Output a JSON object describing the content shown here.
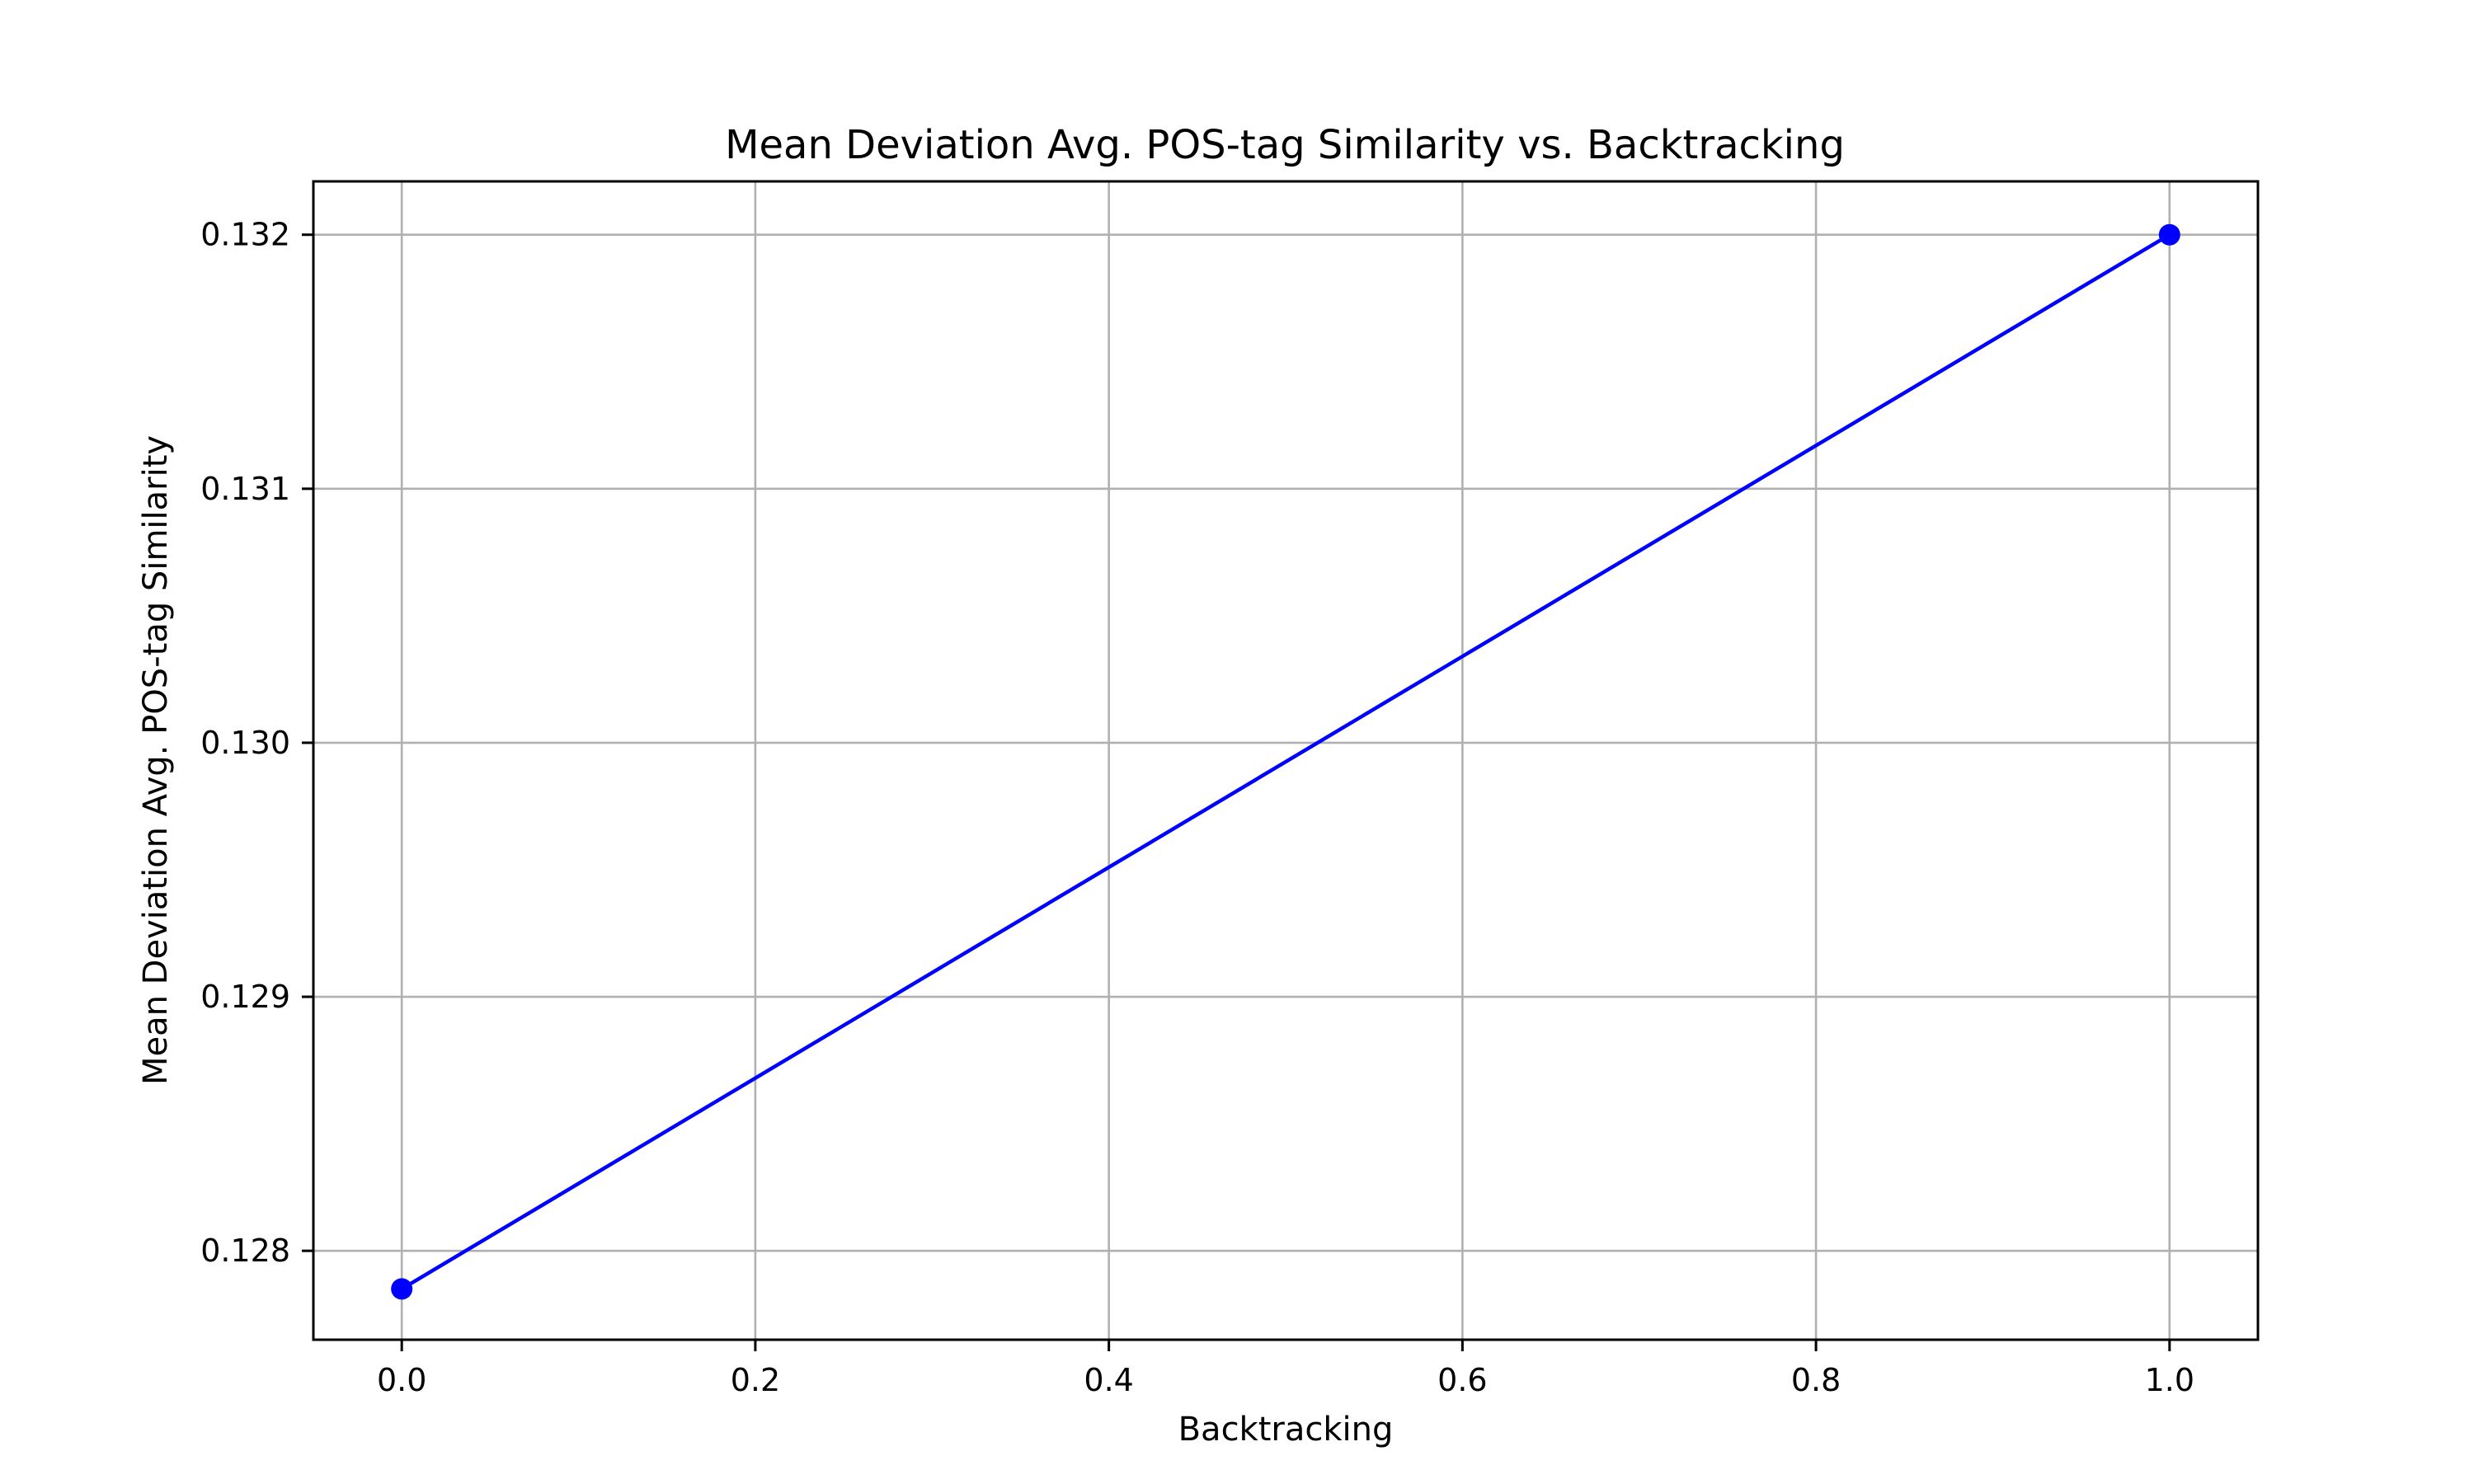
{
  "chart_data": {
    "type": "line",
    "title": "Mean Deviation Avg. POS-tag Similarity vs. Backtracking",
    "xlabel": "Backtracking",
    "ylabel": "Mean Deviation Avg. POS-tag Similarity",
    "x": [
      0.0,
      1.0
    ],
    "series": [
      {
        "values": [
          0.12785,
          0.132
        ],
        "color": "#0000ff",
        "marker": "circle"
      }
    ],
    "xlim": [
      -0.05,
      1.05
    ],
    "ylim": [
      0.12765,
      0.13221
    ],
    "xticks": [
      0.0,
      0.2,
      0.4,
      0.6,
      0.8,
      1.0
    ],
    "xtick_labels": [
      "0.0",
      "0.2",
      "0.4",
      "0.6",
      "0.8",
      "1.0"
    ],
    "yticks": [
      0.128,
      0.129,
      0.13,
      0.131,
      0.132
    ],
    "ytick_labels": [
      "0.128",
      "0.129",
      "0.130",
      "0.131",
      "0.132"
    ],
    "grid": true
  }
}
